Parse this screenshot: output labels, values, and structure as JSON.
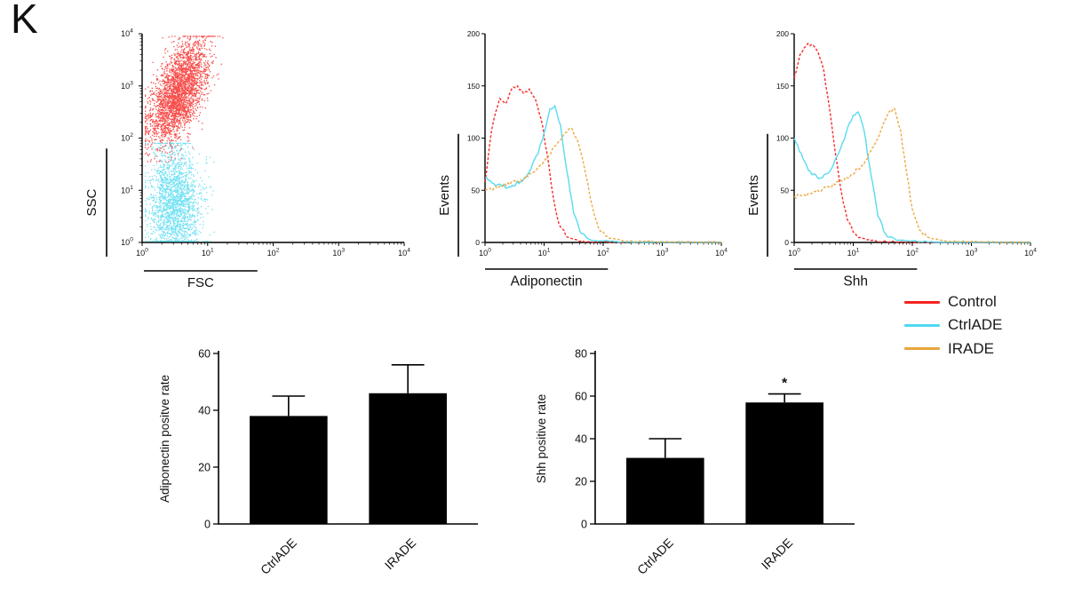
{
  "panel_label": "K",
  "colors": {
    "control": "#f5231f",
    "ctrlade": "#4fd9f0",
    "irade": "#e9a63c",
    "bar": "#000000"
  },
  "legend": {
    "entries": [
      {
        "label": "Control",
        "color_key": "control"
      },
      {
        "label": "CtrlADE",
        "color_key": "ctrlade"
      },
      {
        "label": "IRADE",
        "color_key": "irade"
      }
    ]
  },
  "chart_data": [
    {
      "id": "scatter-fsc-ssc",
      "type": "scatter",
      "xlabel": "FSC",
      "ylabel": "SSC",
      "x_scale": "log10",
      "y_scale": "log10",
      "xlim": [
        1,
        10000
      ],
      "ylim": [
        1,
        10000
      ],
      "tick_exponents": [
        0,
        1,
        2,
        3,
        4
      ],
      "clusters": [
        {
          "name": "high-ssc-population",
          "color_key": "control",
          "n": 2800,
          "x_log_mean": 0.55,
          "x_log_sd": 0.18,
          "y_log_mean": 2.85,
          "y_log_sd": 0.5,
          "xy_corr": 0.5,
          "x_clip": [
            0.05,
            1.45
          ],
          "y_clip": [
            1.55,
            3.95
          ]
        },
        {
          "name": "low-ssc-population",
          "color_key": "ctrlade",
          "n": 2000,
          "x_log_mean": 0.5,
          "x_log_sd": 0.2,
          "y_log_mean": 0.75,
          "y_log_sd": 0.55,
          "xy_corr": 0,
          "x_clip": [
            0.05,
            1.1
          ],
          "y_clip": [
            0.02,
            1.9
          ]
        }
      ]
    },
    {
      "id": "hist-adiponectin",
      "type": "line",
      "xlabel": "Adiponectin",
      "ylabel": "Events",
      "x_scale": "log10",
      "xlim": [
        1,
        10000
      ],
      "ylim": [
        0,
        200
      ],
      "yticks": [
        0,
        50,
        100,
        150,
        200
      ],
      "tick_exponents": [
        0,
        1,
        2,
        3,
        4
      ],
      "series": [
        {
          "name": "Control",
          "color_key": "control",
          "dash": true,
          "points": [
            [
              0,
              58
            ],
            [
              0.08,
              95
            ],
            [
              0.15,
              118
            ],
            [
              0.25,
              138
            ],
            [
              0.35,
              133
            ],
            [
              0.45,
              147
            ],
            [
              0.55,
              150
            ],
            [
              0.65,
              143
            ],
            [
              0.75,
              147
            ],
            [
              0.85,
              138
            ],
            [
              0.95,
              118
            ],
            [
              1.05,
              85
            ],
            [
              1.15,
              45
            ],
            [
              1.25,
              18
            ],
            [
              1.4,
              5
            ],
            [
              1.6,
              1
            ],
            [
              2.5,
              0
            ],
            [
              4,
              0
            ]
          ]
        },
        {
          "name": "CtrlADE",
          "color_key": "ctrlade",
          "dash": false,
          "points": [
            [
              0,
              62
            ],
            [
              0.2,
              55
            ],
            [
              0.4,
              53
            ],
            [
              0.6,
              58
            ],
            [
              0.75,
              68
            ],
            [
              0.9,
              85
            ],
            [
              1.0,
              105
            ],
            [
              1.1,
              128
            ],
            [
              1.18,
              131
            ],
            [
              1.28,
              112
            ],
            [
              1.38,
              70
            ],
            [
              1.5,
              28
            ],
            [
              1.62,
              9
            ],
            [
              1.8,
              2
            ],
            [
              2.5,
              0
            ],
            [
              4,
              0
            ]
          ]
        },
        {
          "name": "IRADE",
          "color_key": "irade",
          "dash": true,
          "points": [
            [
              0,
              50
            ],
            [
              0.3,
              54
            ],
            [
              0.6,
              60
            ],
            [
              0.85,
              68
            ],
            [
              1.05,
              80
            ],
            [
              1.2,
              93
            ],
            [
              1.35,
              105
            ],
            [
              1.45,
              110
            ],
            [
              1.55,
              100
            ],
            [
              1.68,
              72
            ],
            [
              1.8,
              38
            ],
            [
              1.92,
              14
            ],
            [
              2.1,
              4
            ],
            [
              2.4,
              1
            ],
            [
              4,
              0
            ]
          ]
        }
      ]
    },
    {
      "id": "hist-shh",
      "type": "line",
      "xlabel": "Shh",
      "ylabel": "Events",
      "x_scale": "log10",
      "xlim": [
        1,
        10000
      ],
      "ylim": [
        0,
        200
      ],
      "yticks": [
        0,
        50,
        100,
        150,
        200
      ],
      "tick_exponents": [
        0,
        1,
        2,
        3,
        4
      ],
      "series": [
        {
          "name": "Control",
          "color_key": "control",
          "dash": true,
          "points": [
            [
              0,
              158
            ],
            [
              0.1,
              180
            ],
            [
              0.2,
              188
            ],
            [
              0.3,
              190
            ],
            [
              0.4,
              183
            ],
            [
              0.5,
              165
            ],
            [
              0.6,
              128
            ],
            [
              0.7,
              85
            ],
            [
              0.8,
              48
            ],
            [
              0.9,
              22
            ],
            [
              1.0,
              10
            ],
            [
              1.15,
              4
            ],
            [
              1.4,
              1
            ],
            [
              2,
              0
            ],
            [
              4,
              0
            ]
          ]
        },
        {
          "name": "CtrlADE",
          "color_key": "ctrlade",
          "dash": false,
          "points": [
            [
              0,
              100
            ],
            [
              0.15,
              80
            ],
            [
              0.3,
              65
            ],
            [
              0.45,
              62
            ],
            [
              0.6,
              68
            ],
            [
              0.75,
              85
            ],
            [
              0.88,
              105
            ],
            [
              1.0,
              122
            ],
            [
              1.08,
              125
            ],
            [
              1.18,
              108
            ],
            [
              1.3,
              65
            ],
            [
              1.42,
              25
            ],
            [
              1.55,
              8
            ],
            [
              1.75,
              2
            ],
            [
              2.5,
              0
            ],
            [
              4,
              0
            ]
          ]
        },
        {
          "name": "IRADE",
          "color_key": "irade",
          "dash": true,
          "points": [
            [
              0,
              44
            ],
            [
              0.3,
              47
            ],
            [
              0.6,
              53
            ],
            [
              0.9,
              62
            ],
            [
              1.15,
              74
            ],
            [
              1.35,
              92
            ],
            [
              1.5,
              112
            ],
            [
              1.62,
              126
            ],
            [
              1.7,
              128
            ],
            [
              1.8,
              108
            ],
            [
              1.9,
              68
            ],
            [
              2.0,
              32
            ],
            [
              2.12,
              12
            ],
            [
              2.3,
              4
            ],
            [
              2.6,
              1
            ],
            [
              4,
              0
            ]
          ]
        }
      ]
    },
    {
      "id": "bar-adiponectin",
      "type": "bar",
      "ylabel": "Adiponectin positve rate",
      "categories": [
        "CtrlADE",
        "IRADE"
      ],
      "values": [
        38,
        46
      ],
      "errors": [
        7,
        10
      ],
      "ylim": [
        0,
        60
      ],
      "yticks": [
        0,
        20,
        40,
        60
      ],
      "bar_color_key": "bar",
      "significance": [
        "",
        ""
      ]
    },
    {
      "id": "bar-shh",
      "type": "bar",
      "ylabel": "Shh positive rate",
      "categories": [
        "CtrlADE",
        "IRADE"
      ],
      "values": [
        31,
        57
      ],
      "errors": [
        9,
        4
      ],
      "ylim": [
        0,
        80
      ],
      "yticks": [
        0,
        20,
        40,
        60,
        80
      ],
      "bar_color_key": "bar",
      "significance": [
        "",
        "*"
      ]
    }
  ]
}
